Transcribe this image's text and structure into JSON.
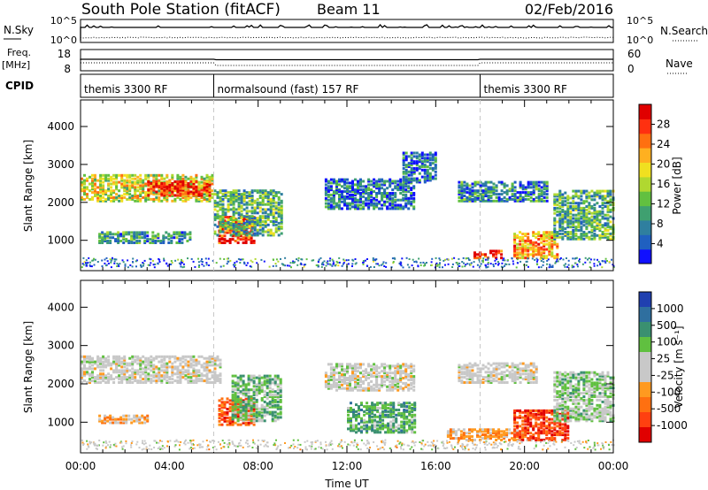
{
  "header": {
    "station": "South Pole Station (fitACF)",
    "beam": "Beam 11",
    "date": "02/Feb/2016"
  },
  "strip_panels": {
    "nsky": {
      "label": "N.Sky",
      "ticks": [
        "10^5",
        "10^0"
      ],
      "right_ticks": [
        "10^5",
        "10^0"
      ],
      "right_label": "N.Search"
    },
    "freq": {
      "label_line1": "Freq.",
      "label_line2": "[MHz]",
      "ticks": [
        "18",
        "8"
      ],
      "right_ticks": [
        "60",
        "0"
      ],
      "right_label": "Nave"
    },
    "cpid": {
      "label": "CPID",
      "segments": [
        {
          "start_hour": 0,
          "name": "themis 3300 RF"
        },
        {
          "start_hour": 6,
          "name": "normalsound (fast) 157 RF"
        },
        {
          "start_hour": 18,
          "name": "themis 3300 RF"
        }
      ]
    }
  },
  "chart_data": [
    {
      "type": "heatmap",
      "name": "power-panel",
      "ylabel": "Slant Range [km]",
      "yticks": [
        1000,
        2000,
        3000,
        4000
      ],
      "ylim": [
        200,
        4700
      ],
      "colorbar": {
        "label": "Power [dB]",
        "ticks": [
          "4",
          "8",
          "12",
          "16",
          "20",
          "24",
          "28"
        ],
        "colors": [
          "#1010ff",
          "#2060c0",
          "#2f7f9f",
          "#3fa070",
          "#62c040",
          "#b0d830",
          "#f0e020",
          "#ffb020",
          "#ff7010",
          "#ff3010",
          "#e00000"
        ]
      },
      "echo_regions": [
        {
          "t0": 0.0,
          "t1": 6.0,
          "r0": 2000,
          "r1": 2700,
          "level": 0.55
        },
        {
          "t0": 3.0,
          "t1": 5.8,
          "r0": 2150,
          "r1": 2550,
          "level": 0.85
        },
        {
          "t0": 6.2,
          "t1": 7.8,
          "r0": 900,
          "r1": 1600,
          "level": 0.85
        },
        {
          "t0": 6.0,
          "t1": 9.0,
          "r0": 1100,
          "r1": 2300,
          "level": 0.35
        },
        {
          "t0": 0.8,
          "t1": 5.0,
          "r0": 900,
          "r1": 1200,
          "level": 0.3
        },
        {
          "t0": 11.0,
          "t1": 15.0,
          "r0": 1800,
          "r1": 2600,
          "level": 0.2
        },
        {
          "t0": 14.5,
          "t1": 16.0,
          "r0": 2500,
          "r1": 3300,
          "level": 0.2
        },
        {
          "t0": 17.0,
          "t1": 21.0,
          "r0": 2000,
          "r1": 2500,
          "level": 0.25
        },
        {
          "t0": 17.7,
          "t1": 19.0,
          "r0": 500,
          "r1": 700,
          "level": 0.9
        },
        {
          "t0": 19.5,
          "t1": 21.5,
          "r0": 500,
          "r1": 1200,
          "level": 0.7
        },
        {
          "t0": 21.3,
          "t1": 24.0,
          "r0": 1000,
          "r1": 2300,
          "level": 0.35
        }
      ]
    },
    {
      "type": "heatmap",
      "name": "velocity-panel",
      "ylabel": "Slant Range [km]",
      "xlabel": "Time UT",
      "xticks": [
        "00:00",
        "04:00",
        "08:00",
        "12:00",
        "16:00",
        "20:00",
        "00:00"
      ],
      "yticks": [
        1000,
        2000,
        3000,
        4000
      ],
      "ylim": [
        200,
        4700
      ],
      "colorbar": {
        "label": "Velocity [m s⁻¹]",
        "ticks": [
          "1000",
          "500",
          "100",
          "25",
          "-25",
          "-100",
          "-500",
          "-1000"
        ],
        "colors": [
          "#2040b0",
          "#2f6f9f",
          "#3a9070",
          "#60c040",
          "#c8c8c8",
          "#c8c8c8",
          "#ff9a20",
          "#ff7010",
          "#ff4010",
          "#e00000"
        ]
      },
      "echo_regions": [
        {
          "t0": 0.0,
          "t1": 6.3,
          "r0": 2000,
          "r1": 2700,
          "vel": 0
        },
        {
          "t0": 6.2,
          "t1": 7.8,
          "r0": 900,
          "r1": 1600,
          "vel": -600
        },
        {
          "t0": 6.8,
          "t1": 9.0,
          "r0": 1000,
          "r1": 2200,
          "vel": 300
        },
        {
          "t0": 0.8,
          "t1": 3.0,
          "r0": 950,
          "r1": 1150,
          "vel": -300
        },
        {
          "t0": 11.0,
          "t1": 15.0,
          "r0": 1800,
          "r1": 2500,
          "vel": 0
        },
        {
          "t0": 12.0,
          "t1": 15.0,
          "r0": 700,
          "r1": 1500,
          "vel": 400
        },
        {
          "t0": 17.0,
          "t1": 20.5,
          "r0": 2000,
          "r1": 2500,
          "vel": 0
        },
        {
          "t0": 16.5,
          "t1": 20.0,
          "r0": 500,
          "r1": 800,
          "vel": -300
        },
        {
          "t0": 19.5,
          "t1": 22.0,
          "r0": 500,
          "r1": 1300,
          "vel": -700
        },
        {
          "t0": 21.3,
          "t1": 24.0,
          "r0": 1000,
          "r1": 2300,
          "vel": 200
        }
      ]
    }
  ]
}
